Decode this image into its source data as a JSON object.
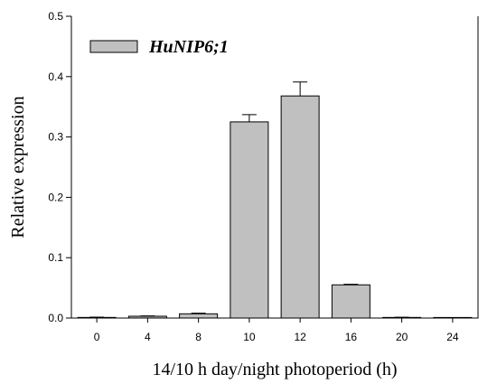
{
  "chart_data": {
    "type": "bar",
    "title": "",
    "xlabel": "14/10 h day/night photoperiod (h)",
    "ylabel": "Relative expression",
    "categories": [
      "0",
      "4",
      "8",
      "10",
      "12",
      "16",
      "20",
      "24"
    ],
    "series": [
      {
        "name": "HuNIP6;1",
        "values": [
          0.001,
          0.003,
          0.007,
          0.325,
          0.368,
          0.055,
          0.001,
          0.0005
        ],
        "errors": [
          0.0005,
          0.0005,
          0.001,
          0.012,
          0.023,
          0.001,
          0.0003,
          0.0002
        ]
      }
    ],
    "ylim": [
      0,
      0.5
    ],
    "yticks": [
      "0.0",
      "0.1",
      "0.2",
      "0.3",
      "0.4",
      "0.5"
    ],
    "grid": false,
    "legend": "top-left",
    "colors": {
      "bar": "#c0c0c0",
      "edge": "#000000"
    }
  }
}
